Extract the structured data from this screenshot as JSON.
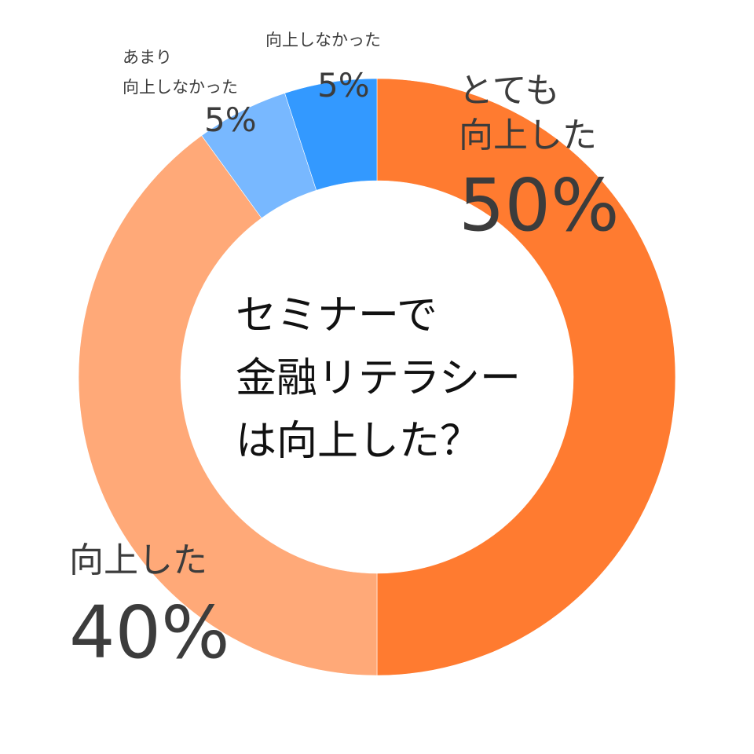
{
  "chart_data": {
    "type": "pie",
    "style": "donut",
    "title_lines": [
      "セミナーで",
      "金融リテラシー",
      "は向上した？"
    ],
    "slices": [
      {
        "label_lines": [
          "とても",
          "向上した"
        ],
        "value": 50,
        "value_label": "50%",
        "color": "#ff7b30"
      },
      {
        "label_lines": [
          "向上した"
        ],
        "value": 40,
        "value_label": "40%",
        "color": "#ffa978"
      },
      {
        "label_lines": [
          "あまり",
          "向上しなかった"
        ],
        "value": 5,
        "value_label": "5%",
        "color": "#78b8ff"
      },
      {
        "label_lines": [
          "向上しなかった"
        ],
        "value": 5,
        "value_label": "5%",
        "color": "#3399ff"
      }
    ],
    "start_angle": "12 o'clock",
    "direction": "clockwise",
    "legend": "none"
  }
}
